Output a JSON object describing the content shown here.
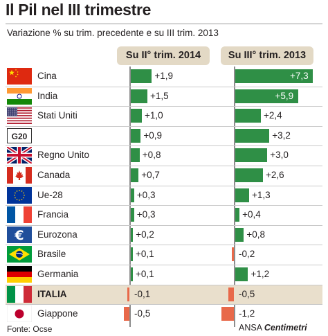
{
  "title": "Il Pil nel III trimestre",
  "subtitle": "Variazione % su trim. precedente e su III trim. 2013",
  "source": "Fonte: Ocse",
  "credit_prefix": "ANSA",
  "credit_brand": "Centimetri",
  "colors": {
    "positive": "#2f8f46",
    "negative": "#e8694a",
    "header_bg": "#e3d9c5",
    "highlight_row": "#e9dfcc"
  },
  "chart_data": {
    "type": "bar",
    "orientation": "horizontal",
    "title": "Il Pil nel III trimestre",
    "subtitle": "Variazione % su trim. precedente e su III trim. 2013",
    "categories": [
      "Cina",
      "India",
      "Stati Uniti",
      "G20",
      "Regno Unito",
      "Canada",
      "Ue-28",
      "Francia",
      "Eurozona",
      "Brasile",
      "Germania",
      "ITALIA",
      "Giappone"
    ],
    "flags": [
      "china-flag",
      "india-flag",
      "usa-flag",
      "g20-label",
      "uk-flag",
      "canada-flag",
      "eu-flag",
      "france-flag",
      "euro-symbol",
      "brazil-flag",
      "germany-flag",
      "italy-flag",
      "japan-flag"
    ],
    "highlight": "ITALIA",
    "series": [
      {
        "name": "Su II° trim. 2014",
        "values": [
          1.9,
          1.5,
          1.0,
          0.9,
          0.8,
          0.7,
          0.3,
          0.3,
          0.2,
          0.1,
          0.1,
          -0.1,
          -0.5
        ],
        "labels": [
          "+1,9",
          "+1,5",
          "+1,0",
          "+0,9",
          "+0,8",
          "+0,7",
          "+0,3",
          "+0,3",
          "+0,2",
          "+0,1",
          "+0,1",
          "-0,1",
          "-0,5"
        ]
      },
      {
        "name": "Su III° trim. 2013",
        "values": [
          7.3,
          5.9,
          2.4,
          3.2,
          3.0,
          2.6,
          1.3,
          0.4,
          0.8,
          -0.2,
          1.2,
          -0.5,
          -1.2
        ],
        "labels": [
          "+7,3",
          "+5,9",
          "+2,4",
          "+3,2",
          "+3,0",
          "+2,6",
          "+1,3",
          "+0,4",
          "+0,8",
          "-0,2",
          "+1,2",
          "-0,5",
          "-1,2"
        ]
      }
    ]
  }
}
